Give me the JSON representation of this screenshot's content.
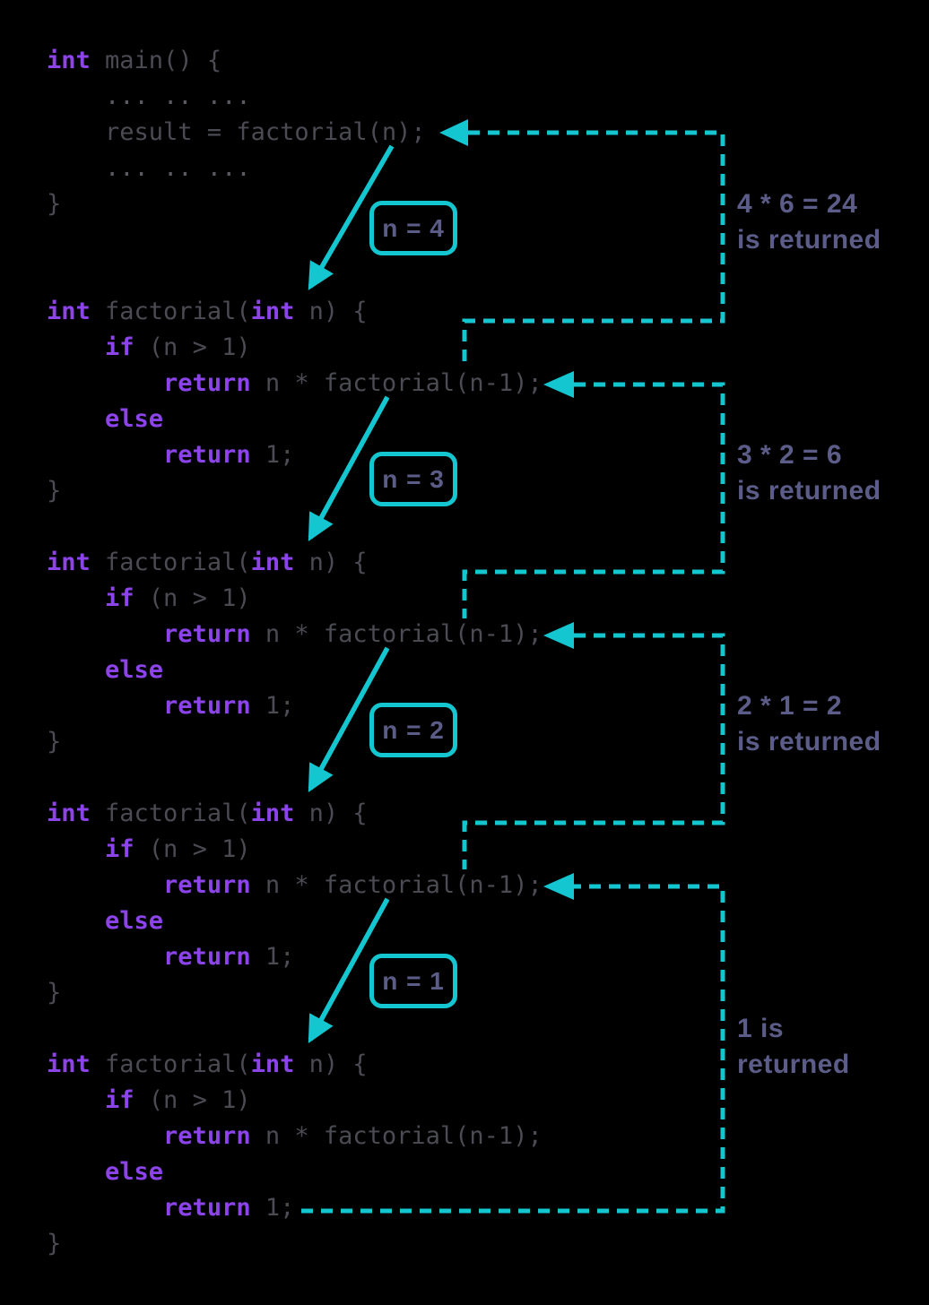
{
  "colors": {
    "background": "#000000",
    "accent": "#14c6d0",
    "keyword": "#8c44ea",
    "code_text": "#4b4b53",
    "code_dim": "#5a5a62",
    "label_text": "#5c5c88"
  },
  "code": {
    "main": [
      [
        {
          "t": "int",
          "c": "kw"
        },
        {
          "t": " main() {",
          "c": "pl"
        }
      ],
      [
        {
          "t": "    ... .. ...",
          "c": "dim"
        }
      ],
      [
        {
          "t": "    result = factorial(n);",
          "c": "pl"
        }
      ],
      [
        {
          "t": "    ... .. ...",
          "c": "dim"
        }
      ],
      [
        {
          "t": "}",
          "c": "pl"
        }
      ]
    ],
    "factorial": [
      [
        {
          "t": "int",
          "c": "kw"
        },
        {
          "t": " factorial(",
          "c": "pl"
        },
        {
          "t": "int",
          "c": "kw"
        },
        {
          "t": " n) {",
          "c": "pl"
        }
      ],
      [
        {
          "t": "    ",
          "c": "pl"
        },
        {
          "t": "if",
          "c": "kw"
        },
        {
          "t": " (n > 1)",
          "c": "pl"
        }
      ],
      [
        {
          "t": "        ",
          "c": "pl"
        },
        {
          "t": "return",
          "c": "kw"
        },
        {
          "t": " n * factorial(n-1);",
          "c": "pl"
        }
      ],
      [
        {
          "t": "    ",
          "c": "pl"
        },
        {
          "t": "else",
          "c": "kw"
        }
      ],
      [
        {
          "t": "        ",
          "c": "pl"
        },
        {
          "t": "return",
          "c": "kw"
        },
        {
          "t": " 1;",
          "c": "pl"
        }
      ],
      [
        {
          "t": "}",
          "c": "pl"
        }
      ]
    ]
  },
  "call_labels": [
    "n = 4",
    "n = 3",
    "n = 2",
    "n = 1"
  ],
  "return_labels": [
    [
      "4 * 6 = 24",
      "is returned"
    ],
    [
      "3 * 2 = 6",
      "is returned"
    ],
    [
      "2 * 1 = 2",
      "is returned"
    ],
    [
      "1 is",
      "returned"
    ]
  ]
}
